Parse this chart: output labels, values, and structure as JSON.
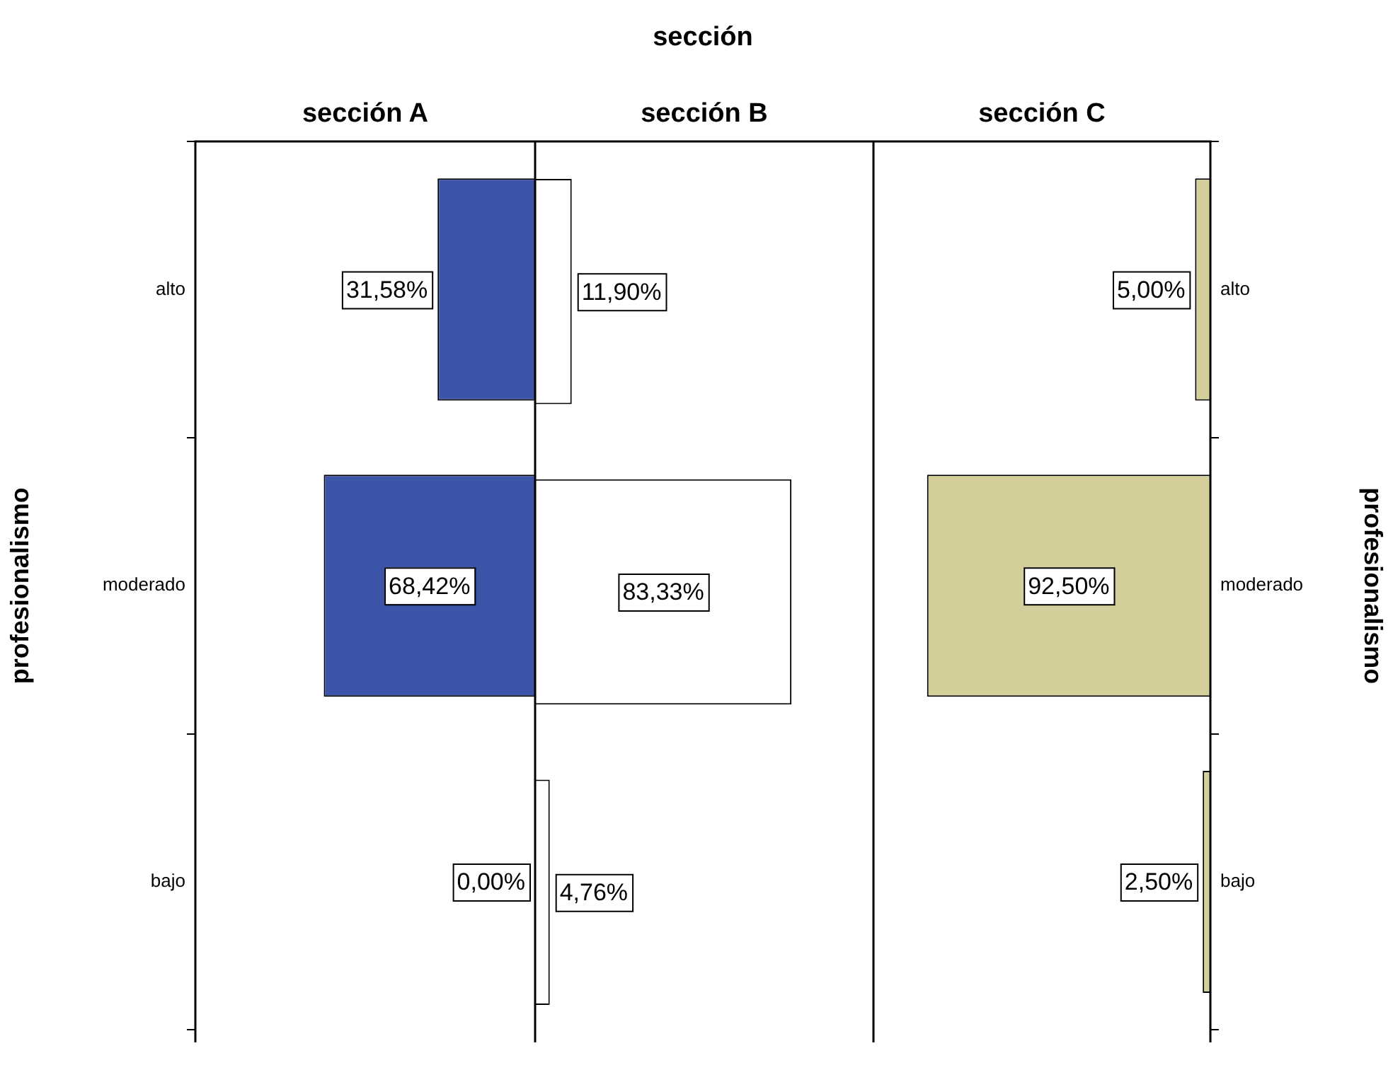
{
  "chart_data": [
    {
      "type": "bar",
      "orientation": "horizontal",
      "subtitle": "sección A",
      "ylabel": "profesionalismo",
      "categories": [
        "alto",
        "moderado",
        "bajo"
      ],
      "values": [
        31.58,
        68.42,
        0
      ],
      "value_labels": [
        "31,58%",
        "68,42%",
        "0,00%"
      ],
      "color": "#3c55a8",
      "xlim": [
        110,
        0
      ],
      "tick_labels": "y"
    },
    {
      "type": "bar",
      "orientation": "horizontal",
      "title": "sección",
      "subtitle": "sección B",
      "categories": [
        null,
        null,
        null
      ],
      "values": [
        11.9,
        83.33,
        4.76
      ],
      "value_labels": [
        "11,90%",
        "83,33%",
        "4,76%"
      ],
      "color": "#ffffff",
      "xlim": [
        0,
        110
      ],
      "tick_labels": false
    },
    {
      "type": "bar",
      "orientation": "horizontal",
      "subtitle": "sección C",
      "ylabel": "profesionalismo",
      "categories": [
        "alto",
        "moderado",
        "bajo"
      ],
      "values": [
        5,
        92.5,
        2.5
      ],
      "value_labels": [
        "5,00%",
        "92,50%",
        "2,50%"
      ],
      "color": "#d4cf9a",
      "xlim": [
        110,
        0
      ],
      "tick_labels": "y"
    }
  ]
}
